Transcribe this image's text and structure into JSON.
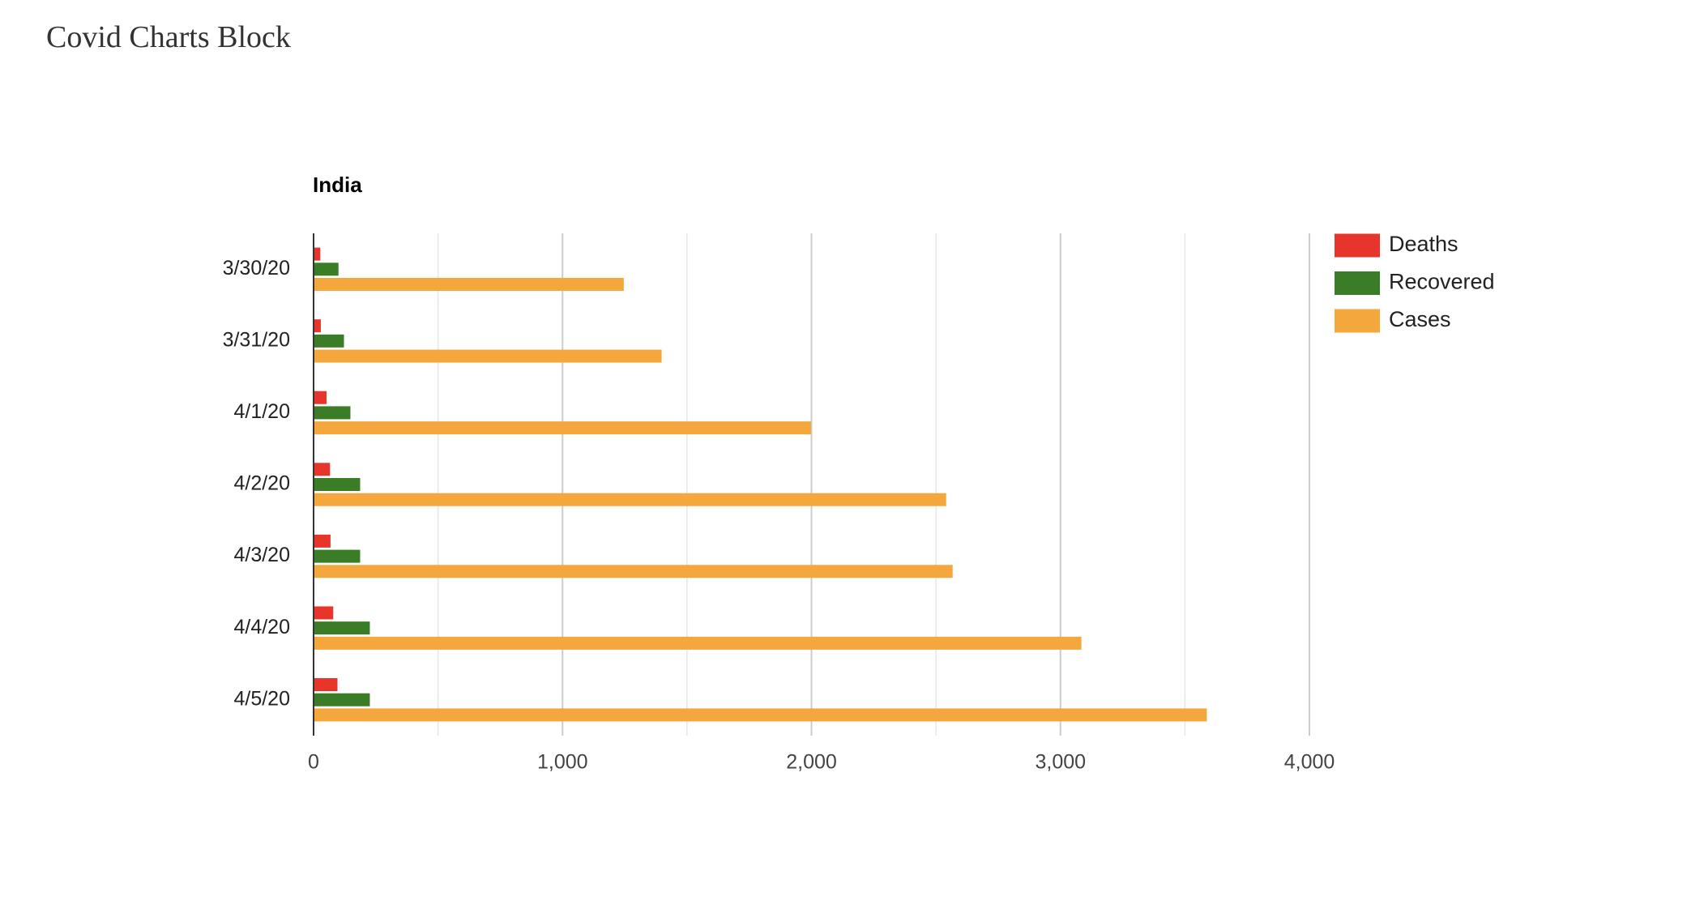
{
  "page_title": "Covid Charts Block",
  "chart_data": {
    "type": "bar",
    "orientation": "horizontal",
    "title": "India",
    "categories": [
      "3/30/20",
      "3/31/20",
      "4/1/20",
      "4/2/20",
      "4/3/20",
      "4/4/20",
      "4/5/20"
    ],
    "series": [
      {
        "name": "Deaths",
        "color": "#e8352b",
        "values": [
          27,
          29,
          52,
          66,
          68,
          79,
          96
        ]
      },
      {
        "name": "Recovered",
        "color": "#3a7d26",
        "values": [
          100,
          122,
          148,
          187,
          187,
          226,
          226
        ]
      },
      {
        "name": "Cases",
        "color": "#f4a73d",
        "values": [
          1246,
          1398,
          1998,
          2541,
          2567,
          3084,
          3588
        ]
      }
    ],
    "xlim": [
      0,
      4000
    ],
    "xticks": [
      0,
      {
        "value": 1000,
        "label": "1,000"
      },
      {
        "value": 2000,
        "label": "2,000"
      },
      {
        "value": 3000,
        "label": "3,000"
      },
      {
        "value": 4000,
        "label": "4,000"
      }
    ],
    "grid": true,
    "legend": "right"
  }
}
